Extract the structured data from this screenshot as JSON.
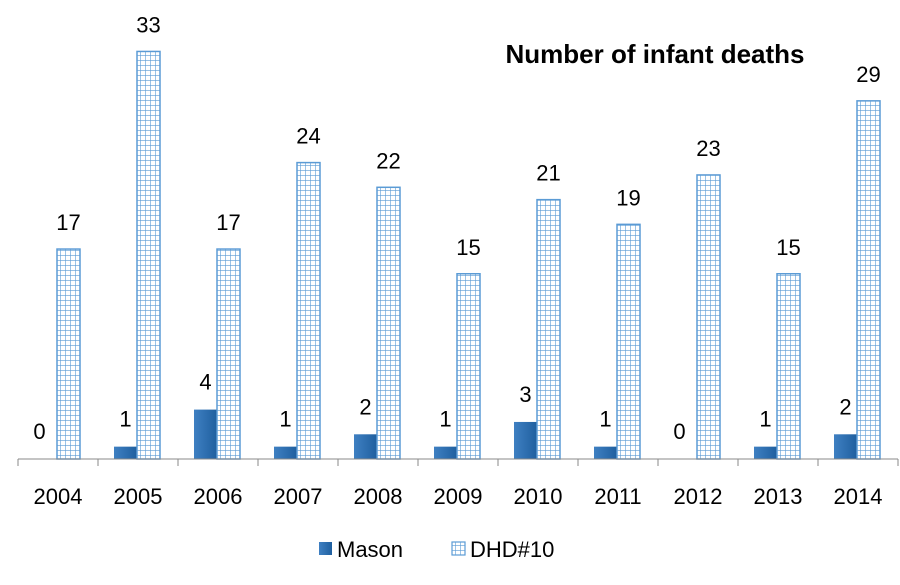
{
  "chart_data": {
    "type": "bar",
    "title": "Number of infant deaths",
    "xlabel": "",
    "ylabel": "",
    "categories": [
      "2004",
      "2005",
      "2006",
      "2007",
      "2008",
      "2009",
      "2010",
      "2011",
      "2012",
      "2013",
      "2014"
    ],
    "series": [
      {
        "name": "Mason",
        "values": [
          0,
          1,
          4,
          1,
          2,
          1,
          3,
          1,
          0,
          1,
          2
        ]
      },
      {
        "name": "DHD#10",
        "values": [
          17,
          33,
          17,
          24,
          22,
          15,
          21,
          19,
          23,
          15,
          29
        ]
      }
    ],
    "ylim": [
      0,
      35
    ],
    "grid": false,
    "legend_position": "bottom",
    "colors": {
      "Mason": "#2e6fb0",
      "DHD#10": "#5b9bd5"
    }
  }
}
